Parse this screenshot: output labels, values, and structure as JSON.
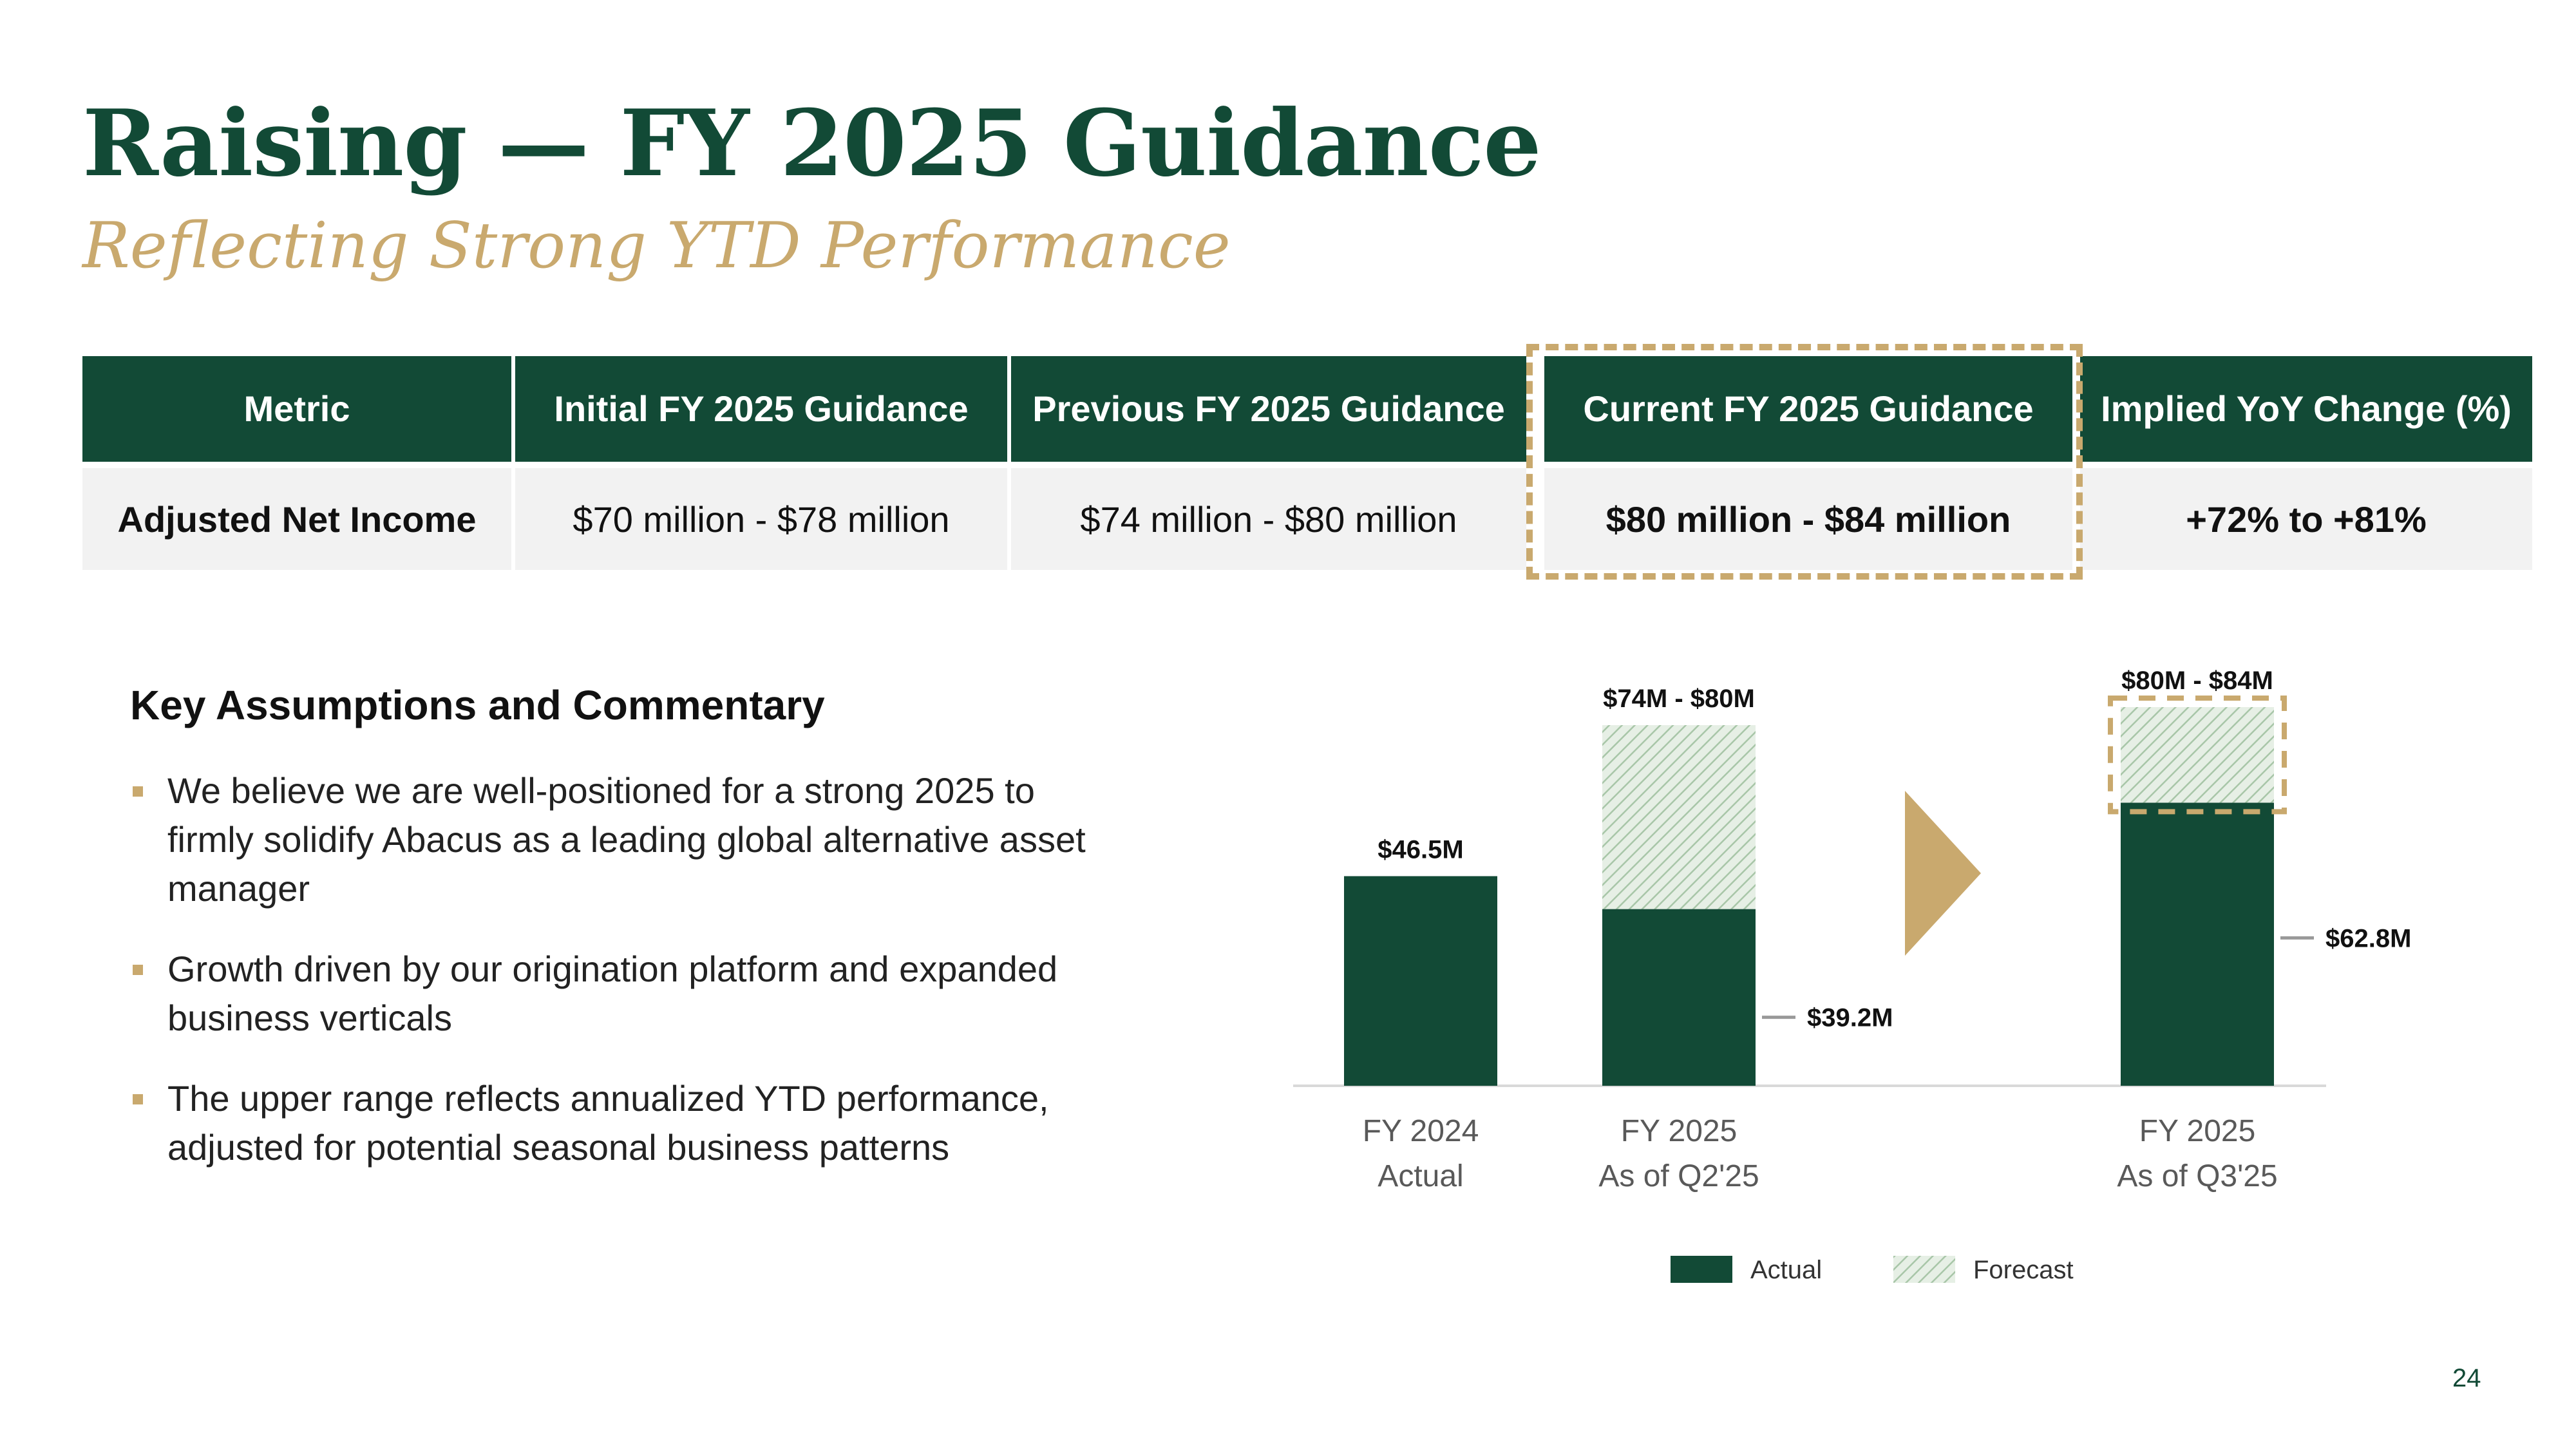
{
  "title": "Raising — FY 2025 Guidance",
  "subtitle": "Reflecting Strong YTD Performance",
  "table": {
    "headers": [
      "Metric",
      "Initial FY 2025 Guidance",
      "Previous FY 2025 Guidance",
      "Current FY 2025 Guidance",
      "Implied YoY Change (%)"
    ],
    "row": [
      "Adjusted Net Income",
      "$70 million - $78 million",
      "$74 million - $80 million",
      "$80 million - $84 million",
      "+72% to +81%"
    ]
  },
  "commentary": {
    "heading": "Key Assumptions and Commentary",
    "bullets": [
      "We believe we are well-positioned for a strong 2025 to firmly solidify Abacus as a leading global alternative asset manager",
      "Growth driven by our origination platform and expanded business verticals",
      "The upper range reflects annualized YTD performance, adjusted for potential seasonal business patterns"
    ]
  },
  "colors": {
    "primary": "#124a36",
    "accent": "#c9a96e",
    "forecast": "#cfe0cf"
  },
  "chart_data": {
    "type": "bar",
    "stacked": true,
    "categories": [
      [
        "FY 2024",
        "Actual"
      ],
      [
        "FY 2025",
        "As of Q2'25"
      ],
      [
        "FY 2025",
        "As of Q3'25"
      ]
    ],
    "series": [
      {
        "name": "Actual",
        "values": [
          46.5,
          39.2,
          62.8
        ]
      },
      {
        "name": "Forecast",
        "values": [
          0,
          40.8,
          21.2
        ]
      }
    ],
    "data_labels": {
      "totals": [
        "$46.5M",
        "$74M - $80M",
        "$80M - $84M"
      ],
      "actuals": [
        "",
        "$39.2M",
        "$62.8M"
      ]
    },
    "ylim": [
      0,
      85
    ],
    "grid": false,
    "legend": {
      "position": "bottom",
      "entries": [
        "Actual",
        "Forecast"
      ]
    },
    "highlight": "FY 2025 As of Q3'25 forecast range",
    "page_number": "24"
  }
}
